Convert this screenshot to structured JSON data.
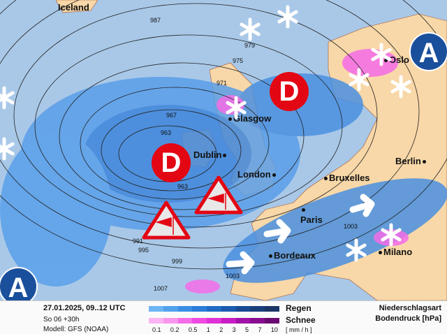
{
  "map": {
    "cities": [
      "Iceland",
      "Oslo",
      "Glasgow",
      "Dublin",
      "London",
      "Bruxelles",
      "Berlin",
      "Paris",
      "Bordeaux",
      "Milano"
    ],
    "isobars": [
      "987",
      "979",
      "975",
      "971",
      "967",
      "963",
      "963",
      "991",
      "995",
      "999",
      "1003",
      "1007",
      "1003"
    ],
    "pressure_systems": {
      "low": "D",
      "high": "A"
    },
    "icons": [
      "snowflake-icon",
      "storm-warning-icon",
      "wind-arrow-icon"
    ]
  },
  "legend": {
    "datetime": "27.01.2025, 09..12 UTC",
    "forecast": "So 06 +30h",
    "model": "Modell: GFS (NOAA)",
    "rain_label": "Regen",
    "snow_label": "Schnee",
    "unit": "[ mm / h ]",
    "ticks": [
      "0.1",
      "0.2",
      "0.5",
      "1",
      "2",
      "3",
      "5",
      "7",
      "10"
    ],
    "title1": "Niederschlagsart",
    "title2": "Bodendruck [hPa]",
    "rain_colors": [
      "#6cb4f4",
      "#52a2ec",
      "#3a8fe4",
      "#2a7cd8",
      "#1f6bc4",
      "#1a5aae",
      "#184a94",
      "#1a3f7c",
      "#1a3566"
    ],
    "snow_colors": [
      "#fbb4f4",
      "#f896ee",
      "#f46ce8",
      "#ee4ae0",
      "#e030d8",
      "#c81cc4",
      "#a012a8",
      "#880c90",
      "#6a0a70"
    ]
  }
}
